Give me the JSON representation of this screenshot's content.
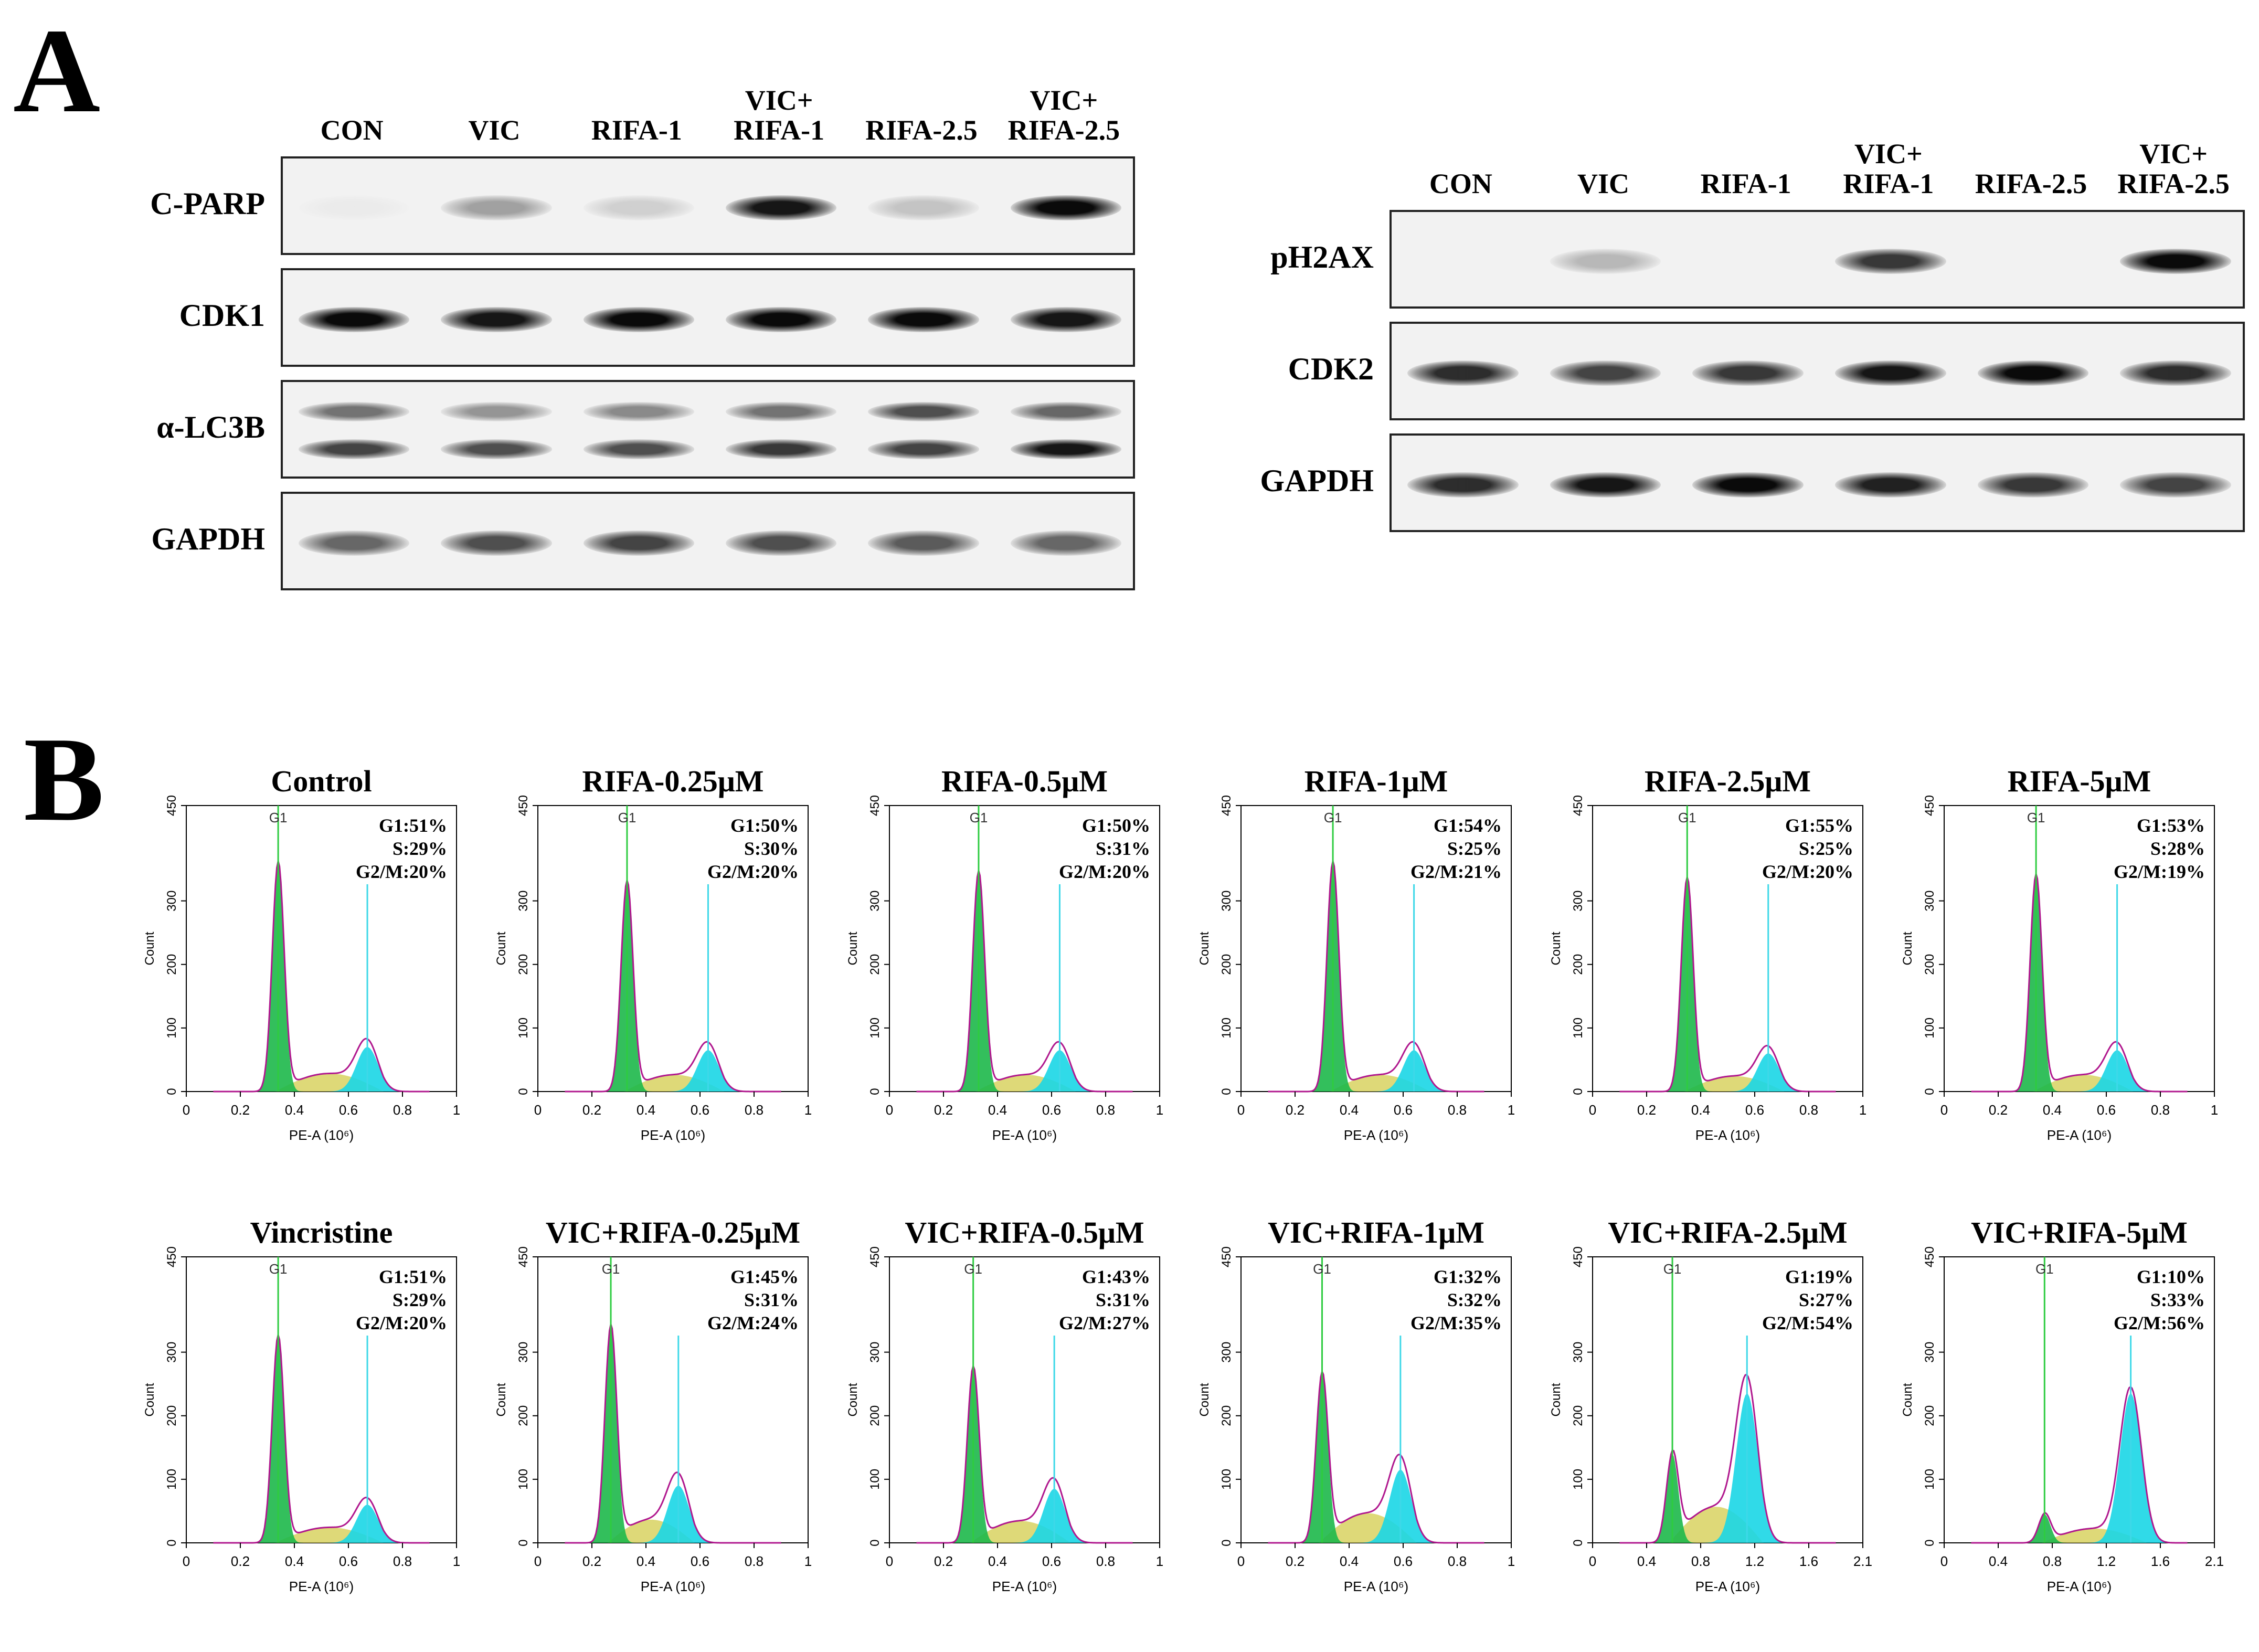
{
  "panel_a": {
    "letter": "A",
    "left_group": {
      "lanes": [
        "CON",
        "VIC",
        "RIFA-1",
        "VIC+\nRIFA-1",
        "RIFA-2.5",
        "VIC+\nRIFA-2.5"
      ],
      "blots": [
        {
          "label": "C-PARP",
          "bands": [
            [
              0.03
            ],
            [
              0.35
            ],
            [
              0.15
            ],
            [
              0.95
            ],
            [
              0.2
            ],
            [
              1.0
            ]
          ]
        },
        {
          "label": "CDK1",
          "bands": [
            [
              1.0
            ],
            [
              0.95
            ],
            [
              1.0
            ],
            [
              1.0
            ],
            [
              1.0
            ],
            [
              0.95
            ]
          ]
        },
        {
          "label": "α-LC3B",
          "bands": [
            [
              0.55,
              0.75
            ],
            [
              0.4,
              0.7
            ],
            [
              0.45,
              0.7
            ],
            [
              0.55,
              0.8
            ],
            [
              0.7,
              0.75
            ],
            [
              0.6,
              0.95
            ]
          ]
        },
        {
          "label": "GAPDH",
          "bands": [
            [
              0.6
            ],
            [
              0.7
            ],
            [
              0.75
            ],
            [
              0.7
            ],
            [
              0.65
            ],
            [
              0.6
            ]
          ]
        }
      ]
    },
    "right_group": {
      "lanes": [
        "CON",
        "VIC",
        "RIFA-1",
        "VIC+\nRIFA-1",
        "RIFA-2.5",
        "VIC+\nRIFA-2.5"
      ],
      "blots": [
        {
          "label": "pH2AX",
          "bands": [
            [
              0.0
            ],
            [
              0.25
            ],
            [
              0.0
            ],
            [
              0.8
            ],
            [
              0.0
            ],
            [
              1.0
            ]
          ]
        },
        {
          "label": "CDK2",
          "bands": [
            [
              0.85
            ],
            [
              0.75
            ],
            [
              0.8
            ],
            [
              0.95
            ],
            [
              1.0
            ],
            [
              0.85
            ]
          ]
        },
        {
          "label": "GAPDH",
          "bands": [
            [
              0.85
            ],
            [
              0.95
            ],
            [
              1.0
            ],
            [
              0.9
            ],
            [
              0.8
            ],
            [
              0.75
            ]
          ]
        }
      ]
    }
  },
  "panel_b": {
    "letter": "B",
    "axis": {
      "xlabel": "PE-A (10⁶)",
      "ylabel": "Count",
      "y_ticks": [
        "0",
        "100",
        "200",
        "300",
        "450"
      ]
    },
    "x_ticks_standard": [
      "0",
      "0.2",
      "0.4",
      "0.6",
      "0.8",
      "1"
    ],
    "x_ticks_wide": [
      "0",
      "0.4",
      "0.8",
      "1.2",
      "1.6",
      "2.1"
    ],
    "g1_marker": "G1",
    "colors": {
      "g1": "#1db84a",
      "s": "#d8d260",
      "g2m": "#1ad6e6",
      "fit": "#b0188e",
      "marker_g1": "#2ecc40",
      "marker_g2": "#3ed8e8"
    },
    "chart_data": [
      {
        "type": "area",
        "title": "Control",
        "g1": "G1:51%",
        "s": "S:29%",
        "g2m": "G2/M:20%",
        "g1_peak_x": 0.34,
        "g1_peak_y": 360,
        "g2_peak_x": 0.67,
        "g2_peak_y": 70,
        "xlim": [
          0,
          1
        ],
        "ylim": [
          0,
          450
        ]
      },
      {
        "type": "area",
        "title": "RIFA-0.25μM",
        "g1": "G1:50%",
        "s": "S:30%",
        "g2m": "G2/M:20%",
        "g1_peak_x": 0.33,
        "g1_peak_y": 330,
        "g2_peak_x": 0.63,
        "g2_peak_y": 65,
        "xlim": [
          0,
          1
        ],
        "ylim": [
          0,
          450
        ]
      },
      {
        "type": "area",
        "title": "RIFA-0.5μM",
        "g1": "G1:50%",
        "s": "S:31%",
        "g2m": "G2/M:20%",
        "g1_peak_x": 0.33,
        "g1_peak_y": 345,
        "g2_peak_x": 0.63,
        "g2_peak_y": 65,
        "xlim": [
          0,
          1
        ],
        "ylim": [
          0,
          450
        ]
      },
      {
        "type": "area",
        "title": "RIFA-1μM",
        "g1": "G1:54%",
        "s": "S:25%",
        "g2m": "G2/M:21%",
        "g1_peak_x": 0.34,
        "g1_peak_y": 360,
        "g2_peak_x": 0.64,
        "g2_peak_y": 65,
        "xlim": [
          0,
          1
        ],
        "ylim": [
          0,
          450
        ]
      },
      {
        "type": "area",
        "title": "RIFA-2.5μM",
        "g1": "G1:55%",
        "s": "S:25%",
        "g2m": "G2/M:20%",
        "g1_peak_x": 0.35,
        "g1_peak_y": 335,
        "g2_peak_x": 0.65,
        "g2_peak_y": 60,
        "xlim": [
          0,
          1
        ],
        "ylim": [
          0,
          450
        ]
      },
      {
        "type": "area",
        "title": "RIFA-5μM",
        "g1": "G1:53%",
        "s": "S:28%",
        "g2m": "G2/M:19%",
        "g1_peak_x": 0.34,
        "g1_peak_y": 340,
        "g2_peak_x": 0.64,
        "g2_peak_y": 65,
        "xlim": [
          0,
          1
        ],
        "ylim": [
          0,
          450
        ]
      },
      {
        "type": "area",
        "title": "Vincristine",
        "g1": "G1:51%",
        "s": "S:29%",
        "g2m": "G2/M:20%",
        "g1_peak_x": 0.34,
        "g1_peak_y": 325,
        "g2_peak_x": 0.67,
        "g2_peak_y": 60,
        "xlim": [
          0,
          1
        ],
        "ylim": [
          0,
          450
        ]
      },
      {
        "type": "area",
        "title": "VIC+RIFA-0.25μM",
        "g1": "G1:45%",
        "s": "S:31%",
        "g2m": "G2/M:24%",
        "g1_peak_x": 0.27,
        "g1_peak_y": 340,
        "g2_peak_x": 0.52,
        "g2_peak_y": 90,
        "xlim": [
          0,
          1
        ],
        "ylim": [
          0,
          450
        ]
      },
      {
        "type": "area",
        "title": "VIC+RIFA-0.5μM",
        "g1": "G1:43%",
        "s": "S:31%",
        "g2m": "G2/M:27%",
        "g1_peak_x": 0.31,
        "g1_peak_y": 275,
        "g2_peak_x": 0.61,
        "g2_peak_y": 85,
        "xlim": [
          0,
          1
        ],
        "ylim": [
          0,
          450
        ]
      },
      {
        "type": "area",
        "title": "VIC+RIFA-1μM",
        "g1": "G1:32%",
        "s": "S:32%",
        "g2m": "G2/M:35%",
        "g1_peak_x": 0.3,
        "g1_peak_y": 265,
        "g2_peak_x": 0.59,
        "g2_peak_y": 115,
        "xlim": [
          0,
          1
        ],
        "ylim": [
          0,
          450
        ]
      },
      {
        "type": "area",
        "title": "VIC+RIFA-2.5μM",
        "g1": "G1:19%",
        "s": "S:27%",
        "g2m": "G2/M:54%",
        "g1_peak_x": 0.62,
        "g1_peak_y": 140,
        "g2_peak_x": 1.2,
        "g2_peak_y": 235,
        "xlim": [
          0,
          2.1
        ],
        "ylim": [
          0,
          450
        ],
        "wide": true
      },
      {
        "type": "area",
        "title": "VIC+RIFA-5μM",
        "g1": "G1:10%",
        "s": "S:33%",
        "g2m": "G2/M:56%",
        "g1_peak_x": 0.78,
        "g1_peak_y": 45,
        "g2_peak_x": 1.45,
        "g2_peak_y": 235,
        "xlim": [
          0,
          2.1
        ],
        "ylim": [
          0,
          450
        ],
        "wide": true
      }
    ]
  }
}
